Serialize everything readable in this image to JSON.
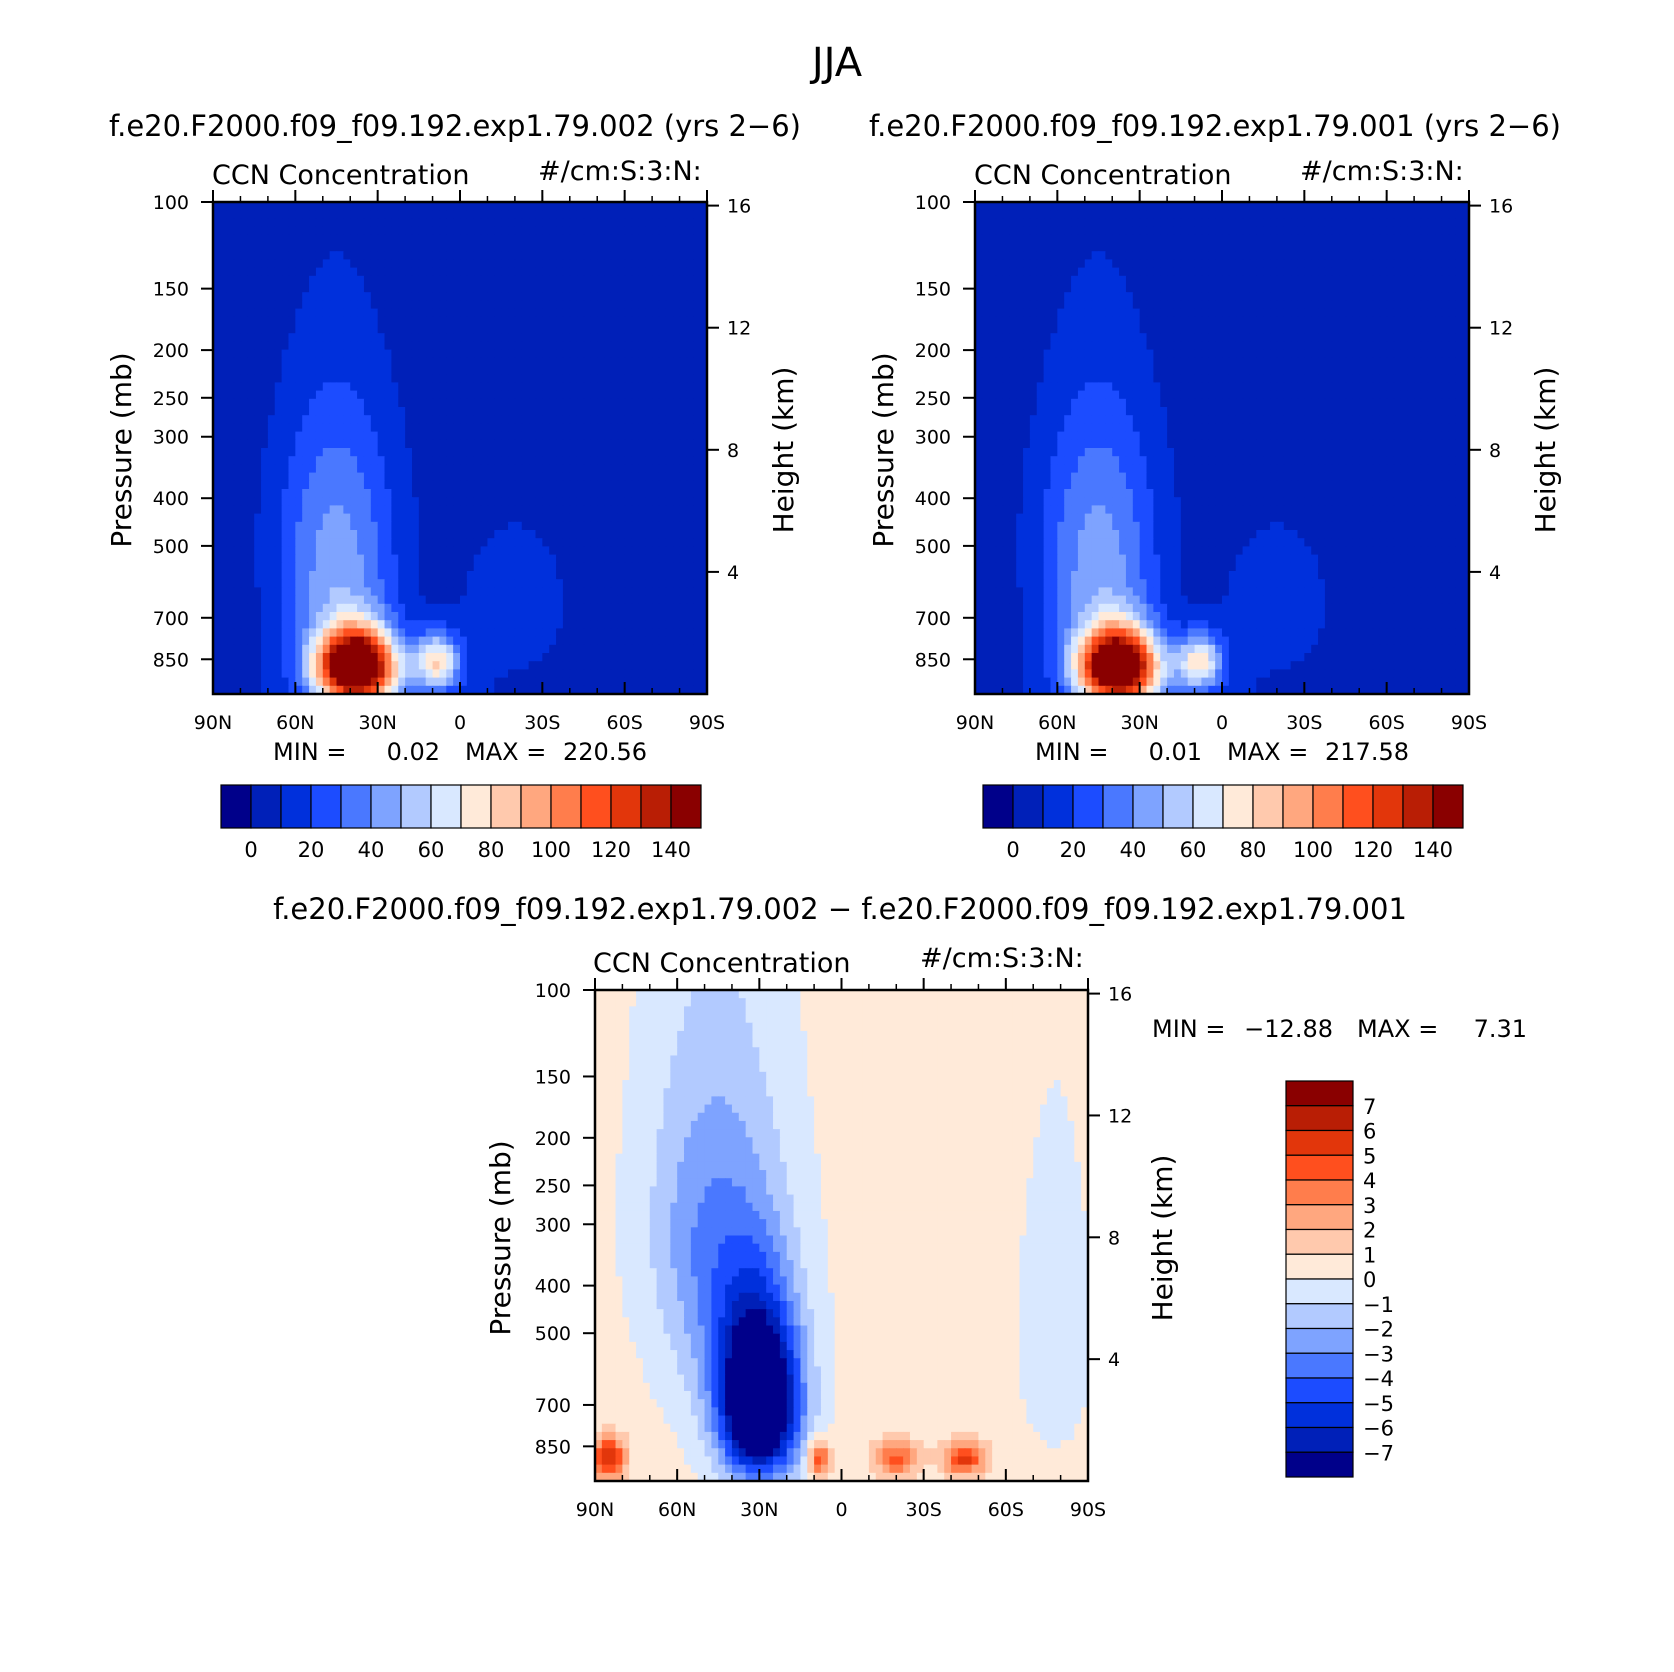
{
  "figure": {
    "title": "JJA"
  },
  "colors": {
    "abs_palette": [
      "#00008a",
      "#0020b8",
      "#0030dc",
      "#1c4cff",
      "#4a78ff",
      "#7ea3ff",
      "#b2caff",
      "#d9e8ff",
      "#ffead9",
      "#ffc9ad",
      "#ffa77f",
      "#ff7d4c",
      "#ff4f1e",
      "#e2360b",
      "#b91e05",
      "#8a0000"
    ],
    "diff_palette": [
      "#00008a",
      "#0020b8",
      "#0030dc",
      "#1c4cff",
      "#4a78ff",
      "#7ea3ff",
      "#b2caff",
      "#d9e8ff",
      "#ffead9",
      "#ffc9ad",
      "#ffa77f",
      "#ff7d4c",
      "#ff4f1e",
      "#e2360b",
      "#b91e05",
      "#8a0000"
    ]
  },
  "chart_data": [
    {
      "type": "heatmap",
      "panel_title": "f.e20.F2000.f09_f09.192.exp1.79.002 (yrs 2−6)",
      "left_title": "CCN Concentration",
      "right_title": "#/cm:S:3:N:",
      "xlabel": "",
      "ylabel": "Pressure (mb)",
      "y2label": "Height (km)",
      "x_ticks": [
        "90N",
        "60N",
        "30N",
        "0",
        "30S",
        "60S",
        "90S"
      ],
      "y_ticks": [
        "100",
        "150",
        "200",
        "250",
        "300",
        "400",
        "500",
        "700",
        "850"
      ],
      "y2_ticks": [
        "16",
        "12",
        "8",
        "4"
      ],
      "min_label": "MIN =",
      "min_value": "0.02",
      "max_label": "MAX =",
      "max_value": "220.56",
      "min": 0.02,
      "max": 220.56,
      "colorbar_levels": [
        0,
        10,
        20,
        30,
        40,
        50,
        60,
        70,
        80,
        90,
        100,
        110,
        120,
        130,
        140
      ],
      "colorbar_labels": [
        "0",
        "20",
        "40",
        "60",
        "80",
        "100",
        "120",
        "140"
      ],
      "field": {
        "blobs": [
          {
            "lat": 38,
            "p": 880,
            "value": 175,
            "lat_width": 14,
            "p_width": 150
          },
          {
            "lat": 8,
            "p": 860,
            "value": 68,
            "lat_width": 8,
            "p_width": 110
          },
          {
            "lat": 45,
            "p": 600,
            "value": 40,
            "lat_width": 22,
            "p_width": 300
          },
          {
            "lat": 45,
            "p": 340,
            "value": 12,
            "lat_width": 25,
            "p_width": 220
          },
          {
            "lat": -20,
            "p": 650,
            "value": 15,
            "lat_width": 22,
            "p_width": 250
          }
        ]
      }
    },
    {
      "type": "heatmap",
      "panel_title": "f.e20.F2000.f09_f09.192.exp1.79.001 (yrs 2−6)",
      "left_title": "CCN Concentration",
      "right_title": "#/cm:S:3:N:",
      "xlabel": "",
      "ylabel": "Pressure (mb)",
      "y2label": "Height (km)",
      "x_ticks": [
        "90N",
        "60N",
        "30N",
        "0",
        "30S",
        "60S",
        "90S"
      ],
      "y_ticks": [
        "100",
        "150",
        "200",
        "250",
        "300",
        "400",
        "500",
        "700",
        "850"
      ],
      "y2_ticks": [
        "16",
        "12",
        "8",
        "4"
      ],
      "min_label": "MIN =",
      "min_value": "0.01",
      "max_label": "MAX =",
      "max_value": "217.58",
      "min": 0.01,
      "max": 217.58,
      "colorbar_levels": [
        0,
        10,
        20,
        30,
        40,
        50,
        60,
        70,
        80,
        90,
        100,
        110,
        120,
        130,
        140
      ],
      "colorbar_labels": [
        "0",
        "20",
        "40",
        "60",
        "80",
        "100",
        "120",
        "140"
      ],
      "field": {
        "blobs": [
          {
            "lat": 38,
            "p": 880,
            "value": 172,
            "lat_width": 14,
            "p_width": 150
          },
          {
            "lat": 8,
            "p": 860,
            "value": 66,
            "lat_width": 8,
            "p_width": 110
          },
          {
            "lat": 45,
            "p": 600,
            "value": 40,
            "lat_width": 22,
            "p_width": 300
          },
          {
            "lat": 45,
            "p": 340,
            "value": 12,
            "lat_width": 25,
            "p_width": 220
          },
          {
            "lat": -20,
            "p": 650,
            "value": 15,
            "lat_width": 22,
            "p_width": 250
          }
        ]
      }
    },
    {
      "type": "heatmap",
      "panel_title": "f.e20.F2000.f09_f09.192.exp1.79.002 − f.e20.F2000.f09_f09.192.exp1.79.001",
      "left_title": "CCN Concentration",
      "right_title": "#/cm:S:3:N:",
      "xlabel": "",
      "ylabel": "Pressure (mb)",
      "y2label": "Height (km)",
      "x_ticks": [
        "90N",
        "60N",
        "30N",
        "0",
        "30S",
        "60S",
        "90S"
      ],
      "y_ticks": [
        "100",
        "150",
        "200",
        "250",
        "300",
        "400",
        "500",
        "700",
        "850"
      ],
      "y2_ticks": [
        "16",
        "12",
        "8",
        "4"
      ],
      "min_label": "MIN =",
      "min_value": "−12.88",
      "max_label": "MAX =",
      "max_value": "7.31",
      "min": -12.88,
      "max": 7.31,
      "colorbar_levels": [
        -7,
        -6,
        -5,
        -4,
        -3,
        -2,
        -1,
        0,
        1,
        2,
        3,
        4,
        5,
        6,
        7
      ],
      "colorbar_labels": [
        "7",
        "6",
        "5",
        "4",
        "3",
        "2",
        "1",
        "0",
        "−1",
        "−2",
        "−3",
        "−4",
        "−5",
        "−6",
        "−7"
      ],
      "field": {
        "blobs": [
          {
            "lat": 30,
            "p": 700,
            "value": -12,
            "lat_width": 14,
            "p_width": 260
          },
          {
            "lat": 40,
            "p": 420,
            "value": -3,
            "lat_width": 22,
            "p_width": 300
          },
          {
            "lat": 55,
            "p": 280,
            "value": -1.5,
            "lat_width": 20,
            "p_width": 200
          },
          {
            "lat": -78,
            "p": 500,
            "value": -0.8,
            "lat_width": 14,
            "p_width": 350
          },
          {
            "lat": 85,
            "p": 900,
            "value": 6,
            "lat_width": 6,
            "p_width": 90
          },
          {
            "lat": 8,
            "p": 900,
            "value": 5,
            "lat_width": 4,
            "p_width": 70
          },
          {
            "lat": -20,
            "p": 900,
            "value": 4,
            "lat_width": 8,
            "p_width": 80
          },
          {
            "lat": -45,
            "p": 900,
            "value": 5,
            "lat_width": 8,
            "p_width": 70
          }
        ]
      }
    }
  ]
}
